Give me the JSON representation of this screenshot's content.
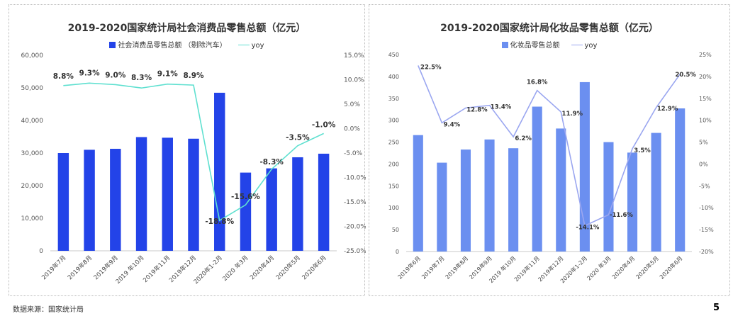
{
  "chart_data": [
    {
      "type": "bar",
      "title": "2019-2020国家统计局社会消费品零售总额（亿元）",
      "categories": [
        "2019年7月",
        "2019年8月",
        "2019年9月",
        "2019 年10月",
        "2019年11月",
        "2019年12月",
        "2020年1-2月",
        "2020 年3月",
        "2020年4月",
        "2020年5月",
        "2020年6月"
      ],
      "series": [
        {
          "name": "社会消费品零售总额 （剔除汽车）",
          "type": "bar",
          "axis": "left",
          "color": "#2343e8",
          "values": [
            30000,
            31000,
            31300,
            34900,
            34700,
            34400,
            48500,
            24000,
            25300,
            28700,
            29800
          ]
        },
        {
          "name": "yoy",
          "type": "line",
          "axis": "right",
          "color": "#5fe0d0",
          "values": [
            8.8,
            9.3,
            9.0,
            8.3,
            9.1,
            8.9,
            -18.8,
            -15.6,
            -8.3,
            -3.5,
            -1.0
          ]
        }
      ],
      "data_labels": [
        "8.8%",
        "9.3%",
        "9.0%",
        "8.3%",
        "9.1%",
        "8.9%",
        "-18.8%",
        "-15.6%",
        "-8.3%",
        "-3.5%",
        "-1.0%"
      ],
      "ylim_left": [
        0,
        60000
      ],
      "ylim_right": [
        -25,
        15
      ],
      "yticks_left": [
        "0",
        "10,000",
        "20,000",
        "30,000",
        "40,000",
        "50,000",
        "60,000"
      ],
      "yticks_right": [
        "-25.0%",
        "-20.0%",
        "-15.0%",
        "-10.0%",
        "-5.0%",
        "0.0%",
        "5.0%",
        "10.0%",
        "15.0%"
      ],
      "grid": false,
      "legend_position": "top"
    },
    {
      "type": "bar",
      "title": "2019-2020国家统计局化妆品零售总额（亿元）",
      "categories": [
        "2019年6月",
        "2019年7月",
        "2019年8月",
        "2019年9月",
        "2019 年10月",
        "2019年11月",
        "2019年12月",
        "2020年1-2月",
        "2020 年3月",
        "2020年4月",
        "2020年5月",
        "2020年6月"
      ],
      "series": [
        {
          "name": "化妆品零售总额",
          "type": "bar",
          "axis": "left",
          "color": "#6b8ff0",
          "values": [
            266,
            203,
            233,
            256,
            236,
            331,
            281,
            387,
            250,
            226,
            271,
            327
          ]
        },
        {
          "name": "yoy",
          "type": "line",
          "axis": "right",
          "color": "#9aa6f0",
          "values": [
            22.5,
            9.4,
            12.8,
            13.4,
            6.2,
            16.8,
            11.9,
            -14.1,
            -11.6,
            3.5,
            12.9,
            20.5
          ]
        }
      ],
      "data_labels": [
        "22.5%",
        "9.4%",
        "12.8%",
        "13.4%",
        "6.2%",
        "16.8%",
        "11.9%",
        "-14.1%",
        "-11.6%",
        "3.5%",
        "12.9%",
        "20.5%"
      ],
      "ylim_left": [
        0,
        450
      ],
      "ylim_right": [
        -20,
        25
      ],
      "yticks_left": [
        "0",
        "50",
        "100",
        "150",
        "200",
        "250",
        "300",
        "350",
        "400",
        "450"
      ],
      "yticks_right": [
        "-20%",
        "-15%",
        "-10%",
        "-5%",
        "0%",
        "5%",
        "10%",
        "15%",
        "20%",
        "25%"
      ],
      "grid": false,
      "legend_position": "top"
    }
  ],
  "footer": {
    "source": "数据来源：国家统计局",
    "page_number": "5"
  }
}
